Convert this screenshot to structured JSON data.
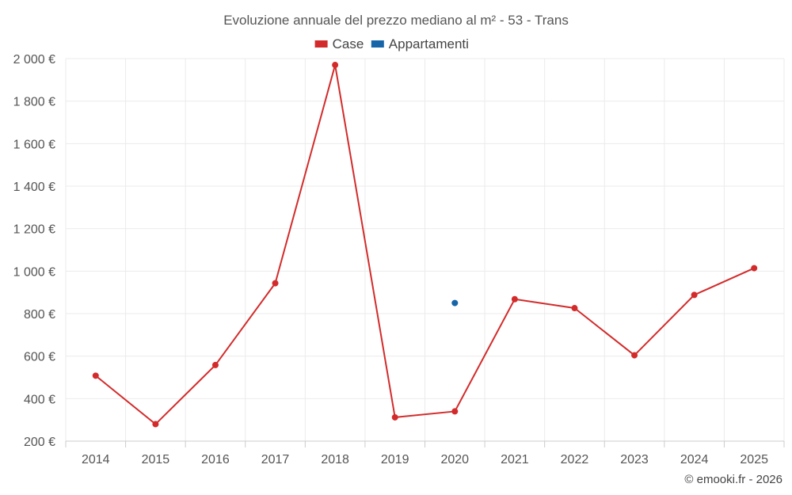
{
  "chart_data": {
    "type": "line",
    "title": "Evoluzione annuale del prezzo mediano al m² - 53 - Trans",
    "categories": [
      "2014",
      "2015",
      "2016",
      "2017",
      "2018",
      "2019",
      "2020",
      "2021",
      "2022",
      "2023",
      "2024",
      "2025"
    ],
    "series": [
      {
        "name": "Case",
        "color": "#d32b2b",
        "values": [
          508,
          280,
          558,
          943,
          1970,
          312,
          340,
          868,
          826,
          604,
          888,
          1014
        ]
      },
      {
        "name": "Appartamenti",
        "color": "#1565a8",
        "values": [
          null,
          null,
          null,
          null,
          null,
          null,
          850,
          null,
          null,
          null,
          null,
          null
        ]
      }
    ],
    "yticks": [
      "200 €",
      "400 €",
      "600 €",
      "800 €",
      "1 000 €",
      "1 200 €",
      "1 400 €",
      "1 600 €",
      "1 800 €",
      "2 000 €"
    ],
    "ytick_values": [
      200,
      400,
      600,
      800,
      1000,
      1200,
      1400,
      1600,
      1800,
      2000
    ],
    "ylim": [
      200,
      2000
    ],
    "xlabel": "",
    "ylabel": "",
    "grid": true,
    "legend_position": "top-center"
  },
  "credit": "© emooki.fr - 2026"
}
